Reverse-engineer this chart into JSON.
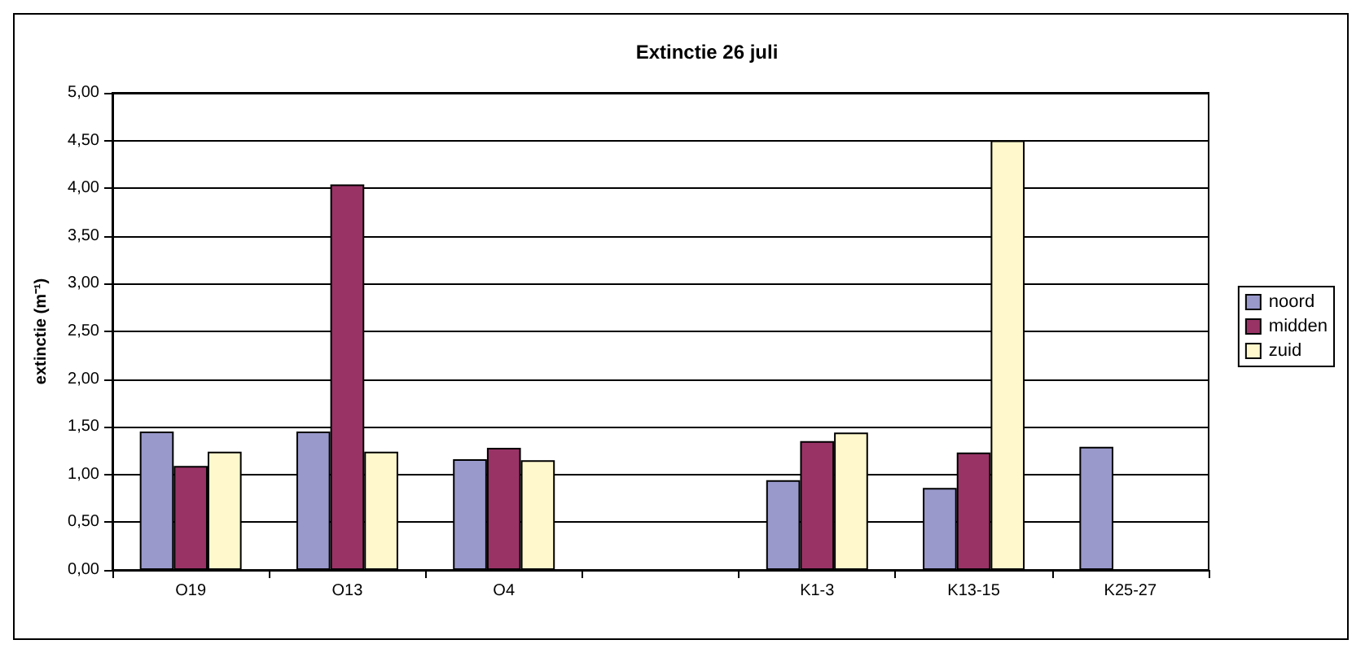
{
  "chart_data": {
    "type": "bar",
    "title": "Extinctie 26 juli",
    "ylabel": "extinctie (m⁻¹)",
    "categories": [
      "O19",
      "O13",
      "O4",
      null,
      "K1-3",
      "K13-15",
      "K25-27"
    ],
    "series": [
      {
        "name": "noord",
        "color": "#9999cc",
        "values": [
          1.45,
          1.45,
          1.16,
          null,
          0.94,
          0.86,
          1.29
        ]
      },
      {
        "name": "midden",
        "color": "#993366",
        "values": [
          1.09,
          4.04,
          1.28,
          null,
          1.35,
          1.23,
          null
        ]
      },
      {
        "name": "zuid",
        "color": "#fff8cc",
        "values": [
          1.24,
          1.24,
          1.15,
          null,
          1.44,
          4.5,
          null
        ]
      }
    ],
    "ylim": [
      0,
      5
    ],
    "yticks": [
      {
        "value": 0,
        "label": "0,00"
      },
      {
        "value": 0.5,
        "label": "0,50"
      },
      {
        "value": 1,
        "label": "1,00"
      },
      {
        "value": 1.5,
        "label": "1,50"
      },
      {
        "value": 2,
        "label": "2,00"
      },
      {
        "value": 2.5,
        "label": "2,50"
      },
      {
        "value": 3,
        "label": "3,00"
      },
      {
        "value": 3.5,
        "label": "3,50"
      },
      {
        "value": 4,
        "label": "4,00"
      },
      {
        "value": 4.5,
        "label": "4,50"
      },
      {
        "value": 5,
        "label": "5,00"
      }
    ],
    "grid": "y",
    "legend": "right"
  }
}
